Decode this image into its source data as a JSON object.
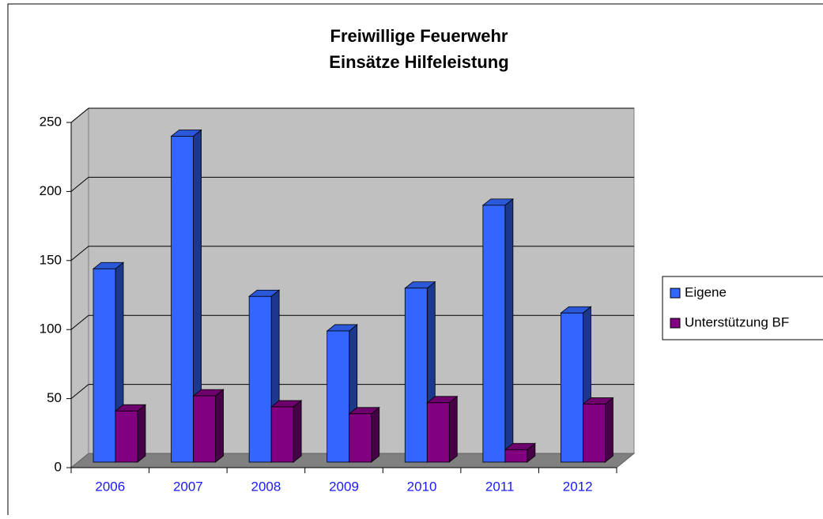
{
  "chart_data": {
    "type": "bar3d",
    "title": [
      "Freiwillige Feuerwehr",
      "Einsätze Hilfeleistung"
    ],
    "categories": [
      "2006",
      "2007",
      "2008",
      "2009",
      "2010",
      "2011",
      "2012"
    ],
    "series": [
      {
        "name": "Eigene",
        "color": "#3366ff",
        "values": [
          140,
          236,
          120,
          95,
          126,
          186,
          108
        ]
      },
      {
        "name": "Unterstützung BF",
        "color": "#800080",
        "values": [
          37,
          48,
          40,
          35,
          43,
          9,
          42
        ]
      }
    ],
    "ylim": [
      0,
      250
    ],
    "yticks": [
      0,
      50,
      100,
      150,
      200,
      250
    ],
    "grid": true,
    "legend": "right"
  }
}
